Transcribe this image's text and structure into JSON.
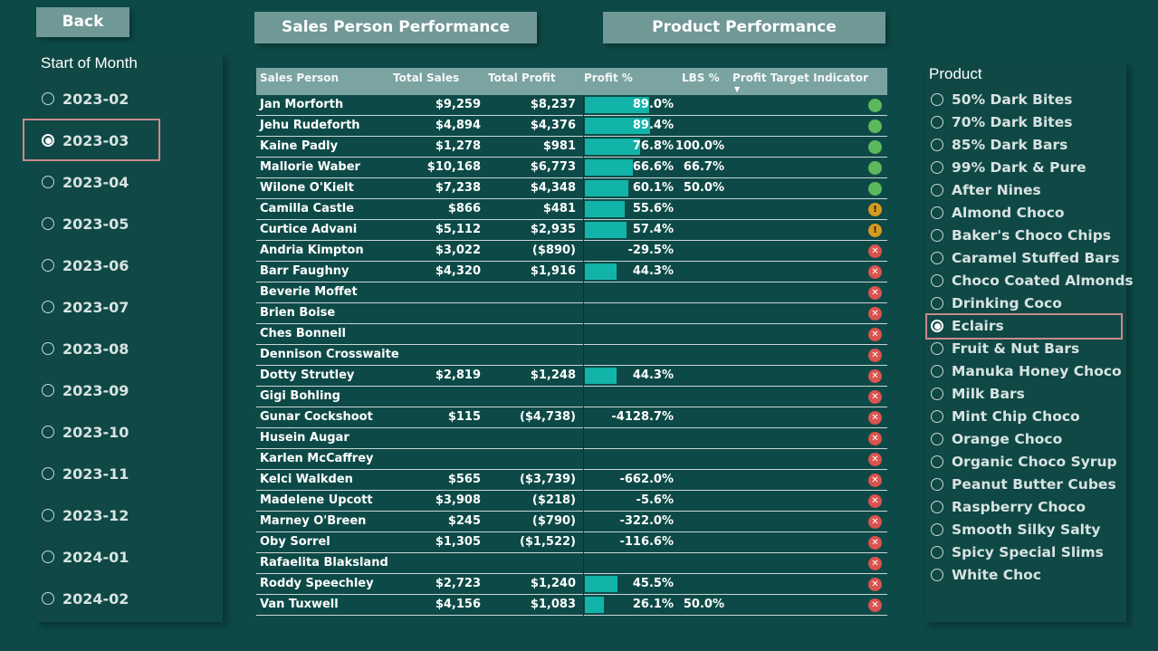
{
  "nav": {
    "back_label": "Back",
    "sales_person_label": "Sales Person Performance",
    "product_label": "Product Performance"
  },
  "month_slicer": {
    "title": "Start of Month",
    "selected": "2023-03",
    "items": [
      "2023-02",
      "2023-03",
      "2023-04",
      "2023-05",
      "2023-06",
      "2023-07",
      "2023-08",
      "2023-09",
      "2023-10",
      "2023-11",
      "2023-12",
      "2024-01",
      "2024-02"
    ]
  },
  "product_slicer": {
    "title": "Product",
    "selected": "Eclairs",
    "items": [
      "50% Dark Bites",
      "70% Dark Bites",
      "85% Dark Bars",
      "99% Dark & Pure",
      "After Nines",
      "Almond Choco",
      "Baker's Choco Chips",
      "Caramel Stuffed Bars",
      "Choco Coated Almonds",
      "Drinking Coco",
      "Eclairs",
      "Fruit & Nut Bars",
      "Manuka Honey Choco",
      "Milk Bars",
      "Mint Chip Choco",
      "Orange Choco",
      "Organic Choco Syrup",
      "Peanut Butter Cubes",
      "Raspberry Choco",
      "Smooth Silky Salty",
      "Spicy Special Slims",
      "White Choc"
    ]
  },
  "table": {
    "headers": {
      "name": "Sales Person",
      "sales": "Total Sales",
      "profit": "Total Profit",
      "pct": "Profit %",
      "lbs": "LBS %",
      "indicator": "Profit Target Indicator"
    },
    "colors": {
      "bar": "#12b3a8",
      "good": "#5cb85c",
      "warn": "#d69a1f",
      "bad": "#d9534f"
    },
    "rows": [
      {
        "name": "Jan Morforth",
        "sales": "$9,259",
        "profit": "$8,237",
        "pct": "89.0%",
        "pct_value": 89.0,
        "lbs": "",
        "indicator": "good"
      },
      {
        "name": "Jehu Rudeforth",
        "sales": "$4,894",
        "profit": "$4,376",
        "pct": "89.4%",
        "pct_value": 89.4,
        "lbs": "",
        "indicator": "good"
      },
      {
        "name": "Kaine Padly",
        "sales": "$1,278",
        "profit": "$981",
        "pct": "76.8%",
        "pct_value": 76.8,
        "lbs": "100.0%",
        "indicator": "good"
      },
      {
        "name": "Mallorie Waber",
        "sales": "$10,168",
        "profit": "$6,773",
        "pct": "66.6%",
        "pct_value": 66.6,
        "lbs": "66.7%",
        "indicator": "good"
      },
      {
        "name": "Wilone O'Kielt",
        "sales": "$7,238",
        "profit": "$4,348",
        "pct": "60.1%",
        "pct_value": 60.1,
        "lbs": "50.0%",
        "indicator": "good"
      },
      {
        "name": "Camilla Castle",
        "sales": "$866",
        "profit": "$481",
        "pct": "55.6%",
        "pct_value": 55.6,
        "lbs": "",
        "indicator": "warn"
      },
      {
        "name": "Curtice Advani",
        "sales": "$5,112",
        "profit": "$2,935",
        "pct": "57.4%",
        "pct_value": 57.4,
        "lbs": "",
        "indicator": "warn"
      },
      {
        "name": "Andria Kimpton",
        "sales": "$3,022",
        "profit": "($890)",
        "pct": "-29.5%",
        "pct_value": -29.5,
        "lbs": "",
        "indicator": "bad"
      },
      {
        "name": "Barr Faughny",
        "sales": "$4,320",
        "profit": "$1,916",
        "pct": "44.3%",
        "pct_value": 44.3,
        "lbs": "",
        "indicator": "bad"
      },
      {
        "name": "Beverie Moffet",
        "sales": "",
        "profit": "",
        "pct": "",
        "pct_value": 0,
        "lbs": "",
        "indicator": "bad"
      },
      {
        "name": "Brien Boise",
        "sales": "",
        "profit": "",
        "pct": "",
        "pct_value": 0,
        "lbs": "",
        "indicator": "bad"
      },
      {
        "name": "Ches Bonnell",
        "sales": "",
        "profit": "",
        "pct": "",
        "pct_value": 0,
        "lbs": "",
        "indicator": "bad"
      },
      {
        "name": "Dennison Crosswaite",
        "sales": "",
        "profit": "",
        "pct": "",
        "pct_value": 0,
        "lbs": "",
        "indicator": "bad"
      },
      {
        "name": "Dotty Strutley",
        "sales": "$2,819",
        "profit": "$1,248",
        "pct": "44.3%",
        "pct_value": 44.3,
        "lbs": "",
        "indicator": "bad"
      },
      {
        "name": "Gigi Bohling",
        "sales": "",
        "profit": "",
        "pct": "",
        "pct_value": 0,
        "lbs": "",
        "indicator": "bad"
      },
      {
        "name": "Gunar Cockshoot",
        "sales": "$115",
        "profit": "($4,738)",
        "pct": "-4128.7%",
        "pct_value": -4128.7,
        "lbs": "",
        "indicator": "bad"
      },
      {
        "name": "Husein Augar",
        "sales": "",
        "profit": "",
        "pct": "",
        "pct_value": 0,
        "lbs": "",
        "indicator": "bad"
      },
      {
        "name": "Karlen McCaffrey",
        "sales": "",
        "profit": "",
        "pct": "",
        "pct_value": 0,
        "lbs": "",
        "indicator": "bad"
      },
      {
        "name": "Kelci Walkden",
        "sales": "$565",
        "profit": "($3,739)",
        "pct": "-662.0%",
        "pct_value": -662.0,
        "lbs": "",
        "indicator": "bad"
      },
      {
        "name": "Madelene Upcott",
        "sales": "$3,908",
        "profit": "($218)",
        "pct": "-5.6%",
        "pct_value": -5.6,
        "lbs": "",
        "indicator": "bad"
      },
      {
        "name": "Marney O'Breen",
        "sales": "$245",
        "profit": "($790)",
        "pct": "-322.0%",
        "pct_value": -322.0,
        "lbs": "",
        "indicator": "bad"
      },
      {
        "name": "Oby Sorrel",
        "sales": "$1,305",
        "profit": "($1,522)",
        "pct": "-116.6%",
        "pct_value": -116.6,
        "lbs": "",
        "indicator": "bad"
      },
      {
        "name": "Rafaelita Blaksland",
        "sales": "",
        "profit": "",
        "pct": "",
        "pct_value": 0,
        "lbs": "",
        "indicator": "bad"
      },
      {
        "name": "Roddy Speechley",
        "sales": "$2,723",
        "profit": "$1,240",
        "pct": "45.5%",
        "pct_value": 45.5,
        "lbs": "",
        "indicator": "bad"
      },
      {
        "name": "Van Tuxwell",
        "sales": "$4,156",
        "profit": "$1,083",
        "pct": "26.1%",
        "pct_value": 26.1,
        "lbs": "50.0%",
        "indicator": "bad"
      }
    ]
  }
}
